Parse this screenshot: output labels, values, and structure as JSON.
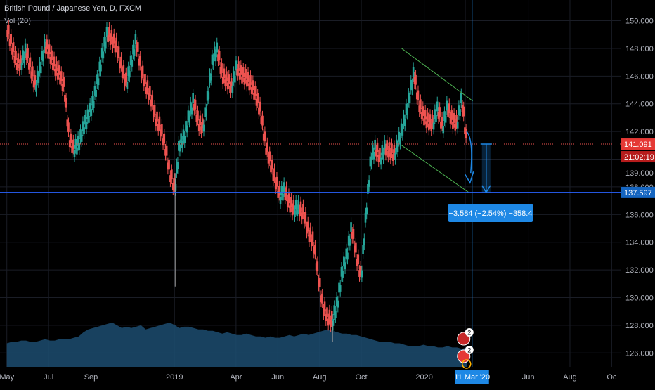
{
  "header": {
    "title": "British Pound / Japanese Yen, D, FXCM",
    "volume_label": "Vol (20)"
  },
  "chart_data": {
    "type": "line",
    "title": "British Pound / Japanese Yen, D, FXCM",
    "ylim": [
      125,
      151.5
    ],
    "y_ticks": [
      126,
      128,
      130,
      132,
      134,
      136,
      138,
      140,
      142,
      144,
      146,
      148,
      150
    ],
    "y_tick_labels": [
      "126.000",
      "128.000",
      "130.000",
      "132.000",
      "134.000",
      "136.000",
      "138.000",
      "140.000",
      "142.000",
      "144.000",
      "146.000",
      "148.000",
      "150.000"
    ],
    "x_ticks": [
      "May",
      "Jul",
      "Sep",
      "2019",
      "Apr",
      "Jun",
      "Aug",
      "Oct",
      "2020",
      "Mar",
      "Jun",
      "Aug",
      "Oc"
    ],
    "series": [
      {
        "x": [
          "2018-05-01",
          "2018-05-08",
          "2018-05-15",
          "2018-05-22",
          "2018-05-29",
          "2018-06-05",
          "2018-06-12",
          "2018-06-19",
          "2018-06-26",
          "2018-07-03",
          "2018-07-10",
          "2018-07-17",
          "2018-07-24",
          "2018-07-31",
          "2018-08-07",
          "2018-08-14",
          "2018-08-21",
          "2018-08-28",
          "2018-09-04",
          "2018-09-11",
          "2018-09-18",
          "2018-09-25",
          "2018-10-02",
          "2018-10-09",
          "2018-10-16",
          "2018-10-23",
          "2018-10-30",
          "2018-11-06",
          "2018-11-13",
          "2018-11-20",
          "2018-11-27",
          "2018-12-04",
          "2018-12-11",
          "2018-12-18",
          "2018-12-25",
          "2019-01-02",
          "2019-01-08",
          "2019-01-15",
          "2019-01-22",
          "2019-01-29",
          "2019-02-05",
          "2019-02-12",
          "2019-02-19",
          "2019-02-26",
          "2019-03-05",
          "2019-03-12",
          "2019-03-19",
          "2019-03-26",
          "2019-04-02",
          "2019-04-09",
          "2019-04-16",
          "2019-04-23",
          "2019-04-30",
          "2019-05-07",
          "2019-05-14",
          "2019-05-21",
          "2019-05-28",
          "2019-06-04",
          "2019-06-11",
          "2019-06-18",
          "2019-06-25",
          "2019-07-02",
          "2019-07-09",
          "2019-07-16",
          "2019-07-23",
          "2019-07-30",
          "2019-08-06",
          "2019-08-13",
          "2019-08-20",
          "2019-08-27",
          "2019-09-03",
          "2019-09-10",
          "2019-09-17",
          "2019-09-24",
          "2019-10-01",
          "2019-10-08",
          "2019-10-15",
          "2019-10-22",
          "2019-10-29",
          "2019-11-05",
          "2019-11-12",
          "2019-11-19",
          "2019-11-26",
          "2019-12-03",
          "2019-12-10",
          "2019-12-17",
          "2019-12-24",
          "2019-12-31",
          "2020-01-07",
          "2020-01-14",
          "2020-01-21",
          "2020-01-28",
          "2020-02-04",
          "2020-02-11",
          "2020-02-18",
          "2020-02-25",
          "2020-03-03"
        ],
        "values": [
          149.5,
          148.2,
          147.0,
          146.8,
          147.8,
          146.5,
          145.2,
          146.5,
          148.2,
          147.5,
          146.6,
          146.0,
          145.1,
          141.5,
          140.6,
          141.0,
          142.2,
          143.0,
          144.0,
          145.6,
          147.6,
          149.0,
          148.6,
          148.0,
          146.5,
          145.4,
          147.0,
          148.5,
          146.5,
          145.3,
          144.5,
          143.0,
          142.3,
          141.0,
          139.0,
          137.8,
          141.0,
          141.5,
          143.0,
          144.2,
          142.6,
          142.2,
          144.5,
          147.2,
          147.8,
          146.0,
          145.6,
          145.1,
          146.6,
          146.0,
          145.8,
          145.3,
          144.5,
          143.3,
          141.0,
          139.7,
          138.5,
          137.2,
          137.7,
          136.7,
          136.3,
          136.4,
          136.0,
          134.6,
          134.0,
          131.6,
          129.3,
          128.5,
          128.3,
          129.5,
          131.8,
          133.0,
          135.0,
          133.0,
          131.4,
          136.0,
          140.0,
          140.8,
          140.0,
          140.8,
          140.5,
          140.3,
          141.4,
          142.7,
          144.3,
          146.2,
          144.0,
          143.0,
          142.6,
          142.5,
          143.6,
          142.2,
          143.7,
          142.7,
          142.5,
          144.3,
          141.1
        ]
      }
    ],
    "volume": [
      126.7,
      126.8,
      126.8,
      126.9,
      126.9,
      126.8,
      126.8,
      126.9,
      127.0,
      126.9,
      126.9,
      127.0,
      127.0,
      127.0,
      127.1,
      127.2,
      127.5,
      127.7,
      127.8,
      127.9,
      128.0,
      128.1,
      128.2,
      128.0,
      127.8,
      127.9,
      127.8,
      127.9,
      128.0,
      127.7,
      127.8,
      127.9,
      128.0,
      128.1,
      128.2,
      128.0,
      127.8,
      127.9,
      127.9,
      127.8,
      127.7,
      127.7,
      127.6,
      127.6,
      127.5,
      127.4,
      127.5,
      127.4,
      127.3,
      127.3,
      127.4,
      127.3,
      127.2,
      127.2,
      127.1,
      127.2,
      127.1,
      127.1,
      127.2,
      127.3,
      127.2,
      127.3,
      127.4,
      127.3,
      127.4,
      127.5,
      127.6,
      127.7,
      127.6,
      127.5,
      127.4,
      127.4,
      127.3,
      127.3,
      127.2,
      127.1,
      127.0,
      126.9,
      126.8,
      126.8,
      126.8,
      126.7,
      126.7,
      126.6,
      126.5,
      126.5,
      126.5,
      126.6,
      126.5,
      126.5,
      126.4,
      126.4,
      126.5,
      126.4,
      126.4,
      126.3,
      126.4
    ],
    "current_price": "141.091",
    "current_price_value": 141.091,
    "countdown": "21:02:19",
    "target_price": "137.597",
    "target_price_value": 137.597,
    "hidden_label": "139.000",
    "measure_label": "−3.584 (−2.54%) −358.4",
    "date_cursor_label": "11 Mar '20",
    "event_badges": [
      "2",
      "2"
    ],
    "colors": {
      "up": "#26a69a",
      "down": "#ef5350",
      "price_line": "#ef5350",
      "horizontal_line": "#2962ff",
      "channel": "#4caf50",
      "measure": "#1e88e5",
      "volume": "#1c4c70"
    }
  }
}
